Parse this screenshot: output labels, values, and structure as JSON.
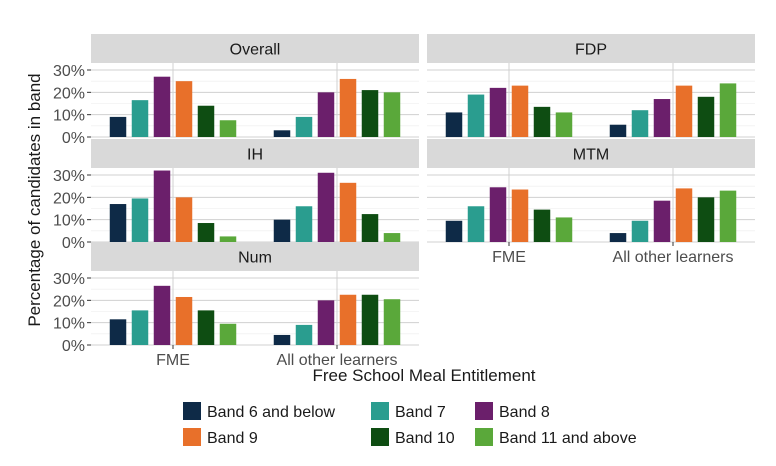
{
  "chart_data": {
    "type": "bar",
    "layout": "faceted",
    "xlabel": "Free School Meal Entitlement",
    "ylabel": "Percentage of candidates in band",
    "ylim": [
      0,
      0.3
    ],
    "yticks": [
      "0%",
      "10%",
      "20%",
      "30%"
    ],
    "categories": [
      "FME",
      "All other learners"
    ],
    "legend_position": "bottom",
    "series_names": [
      "Band 6 and below",
      "Band 7",
      "Band 8",
      "Band 9",
      "Band 10",
      "Band 11 and above"
    ],
    "colors": [
      "#0e2a47",
      "#2a9d8f",
      "#6b1f6b",
      "#e8702a",
      "#0e4d12",
      "#5aa83a"
    ],
    "panels": [
      {
        "title": "Overall",
        "values": [
          [
            0.09,
            0.165,
            0.27,
            0.25,
            0.14,
            0.075
          ],
          [
            0.03,
            0.09,
            0.2,
            0.26,
            0.21,
            0.2
          ]
        ]
      },
      {
        "title": "FDP",
        "values": [
          [
            0.11,
            0.19,
            0.22,
            0.23,
            0.135,
            0.11
          ],
          [
            0.055,
            0.12,
            0.17,
            0.23,
            0.18,
            0.24
          ]
        ]
      },
      {
        "title": "IH",
        "values": [
          [
            0.17,
            0.195,
            0.32,
            0.2,
            0.085,
            0.025
          ],
          [
            0.1,
            0.16,
            0.31,
            0.265,
            0.125,
            0.04
          ]
        ]
      },
      {
        "title": "MTM",
        "values": [
          [
            0.095,
            0.16,
            0.245,
            0.235,
            0.145,
            0.11
          ],
          [
            0.04,
            0.095,
            0.185,
            0.24,
            0.2,
            0.23
          ]
        ]
      },
      {
        "title": "Num",
        "values": [
          [
            0.115,
            0.155,
            0.265,
            0.215,
            0.155,
            0.095
          ],
          [
            0.045,
            0.09,
            0.2,
            0.225,
            0.225,
            0.205
          ]
        ]
      }
    ]
  }
}
